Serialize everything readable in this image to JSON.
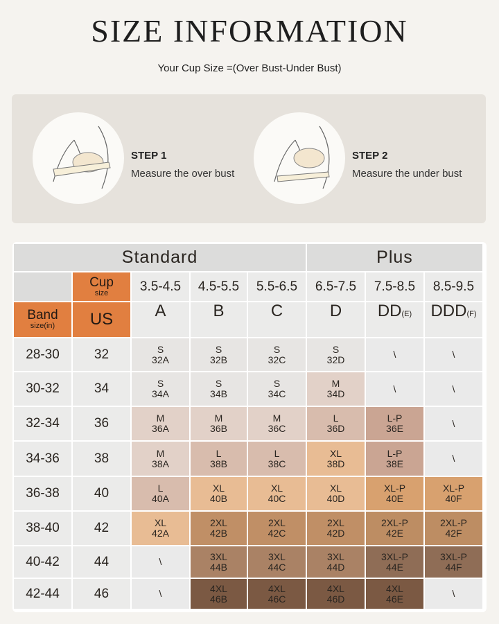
{
  "title": "SIZE INFORMATION",
  "subtitle": "Your Cup Size =(Over Bust-Under Bust)",
  "steps": [
    {
      "label": "STEP 1",
      "desc": "Measure the over bust",
      "icon": "measure-over-bust-illustration"
    },
    {
      "label": "STEP 2",
      "desc": "Measure the under bust",
      "icon": "measure-under-bust-illustration"
    }
  ],
  "table": {
    "group_headers": [
      "Standard",
      "Plus"
    ],
    "cup_label": "Cup",
    "cup_sub": "size",
    "band_label": "Band",
    "band_sub": "size(in)",
    "us_label": "US",
    "cup_ranges": [
      "3.5-4.5",
      "4.5-5.5",
      "5.5-6.5",
      "6.5-7.5",
      "7.5-8.5",
      "8.5-9.5"
    ],
    "cup_letters": [
      {
        "l": "A",
        "s": ""
      },
      {
        "l": "B",
        "s": ""
      },
      {
        "l": "C",
        "s": ""
      },
      {
        "l": "D",
        "s": ""
      },
      {
        "l": "DD",
        "s": "(E)"
      },
      {
        "l": "DDD",
        "s": "(F)"
      }
    ],
    "rows": [
      {
        "band": "28-30",
        "us": "32",
        "cells": [
          [
            "S",
            "32A"
          ],
          [
            "S",
            "32B"
          ],
          [
            "S",
            "32C"
          ],
          [
            "S",
            "32D"
          ],
          [
            "\\",
            ""
          ],
          [
            "\\",
            ""
          ]
        ]
      },
      {
        "band": "30-32",
        "us": "34",
        "cells": [
          [
            "S",
            "34A"
          ],
          [
            "S",
            "34B"
          ],
          [
            "S",
            "34C"
          ],
          [
            "M",
            "34D"
          ],
          [
            "\\",
            ""
          ],
          [
            "\\",
            ""
          ]
        ]
      },
      {
        "band": "32-34",
        "us": "36",
        "cells": [
          [
            "M",
            "36A"
          ],
          [
            "M",
            "36B"
          ],
          [
            "M",
            "36C"
          ],
          [
            "L",
            "36D"
          ],
          [
            "L-P",
            "36E"
          ],
          [
            "\\",
            ""
          ]
        ]
      },
      {
        "band": "34-36",
        "us": "38",
        "cells": [
          [
            "M",
            "38A"
          ],
          [
            "L",
            "38B"
          ],
          [
            "L",
            "38C"
          ],
          [
            "XL",
            "38D"
          ],
          [
            "L-P",
            "38E"
          ],
          [
            "\\",
            ""
          ]
        ]
      },
      {
        "band": "36-38",
        "us": "40",
        "cells": [
          [
            "L",
            "40A"
          ],
          [
            "XL",
            "40B"
          ],
          [
            "XL",
            "40C"
          ],
          [
            "XL",
            "40D"
          ],
          [
            "XL-P",
            "40E"
          ],
          [
            "XL-P",
            "40F"
          ]
        ]
      },
      {
        "band": "38-40",
        "us": "42",
        "cells": [
          [
            "XL",
            "42A"
          ],
          [
            "2XL",
            "42B"
          ],
          [
            "2XL",
            "42C"
          ],
          [
            "2XL",
            "42D"
          ],
          [
            "2XL-P",
            "42E"
          ],
          [
            "2XL-P",
            "42F"
          ]
        ]
      },
      {
        "band": "40-42",
        "us": "44",
        "cells": [
          [
            "\\",
            ""
          ],
          [
            "3XL",
            "44B"
          ],
          [
            "3XL",
            "44C"
          ],
          [
            "3XL",
            "44D"
          ],
          [
            "3XL-P",
            "44E"
          ],
          [
            "3XL-P",
            "44F"
          ]
        ]
      },
      {
        "band": "42-44",
        "us": "46",
        "cells": [
          [
            "\\",
            ""
          ],
          [
            "4XL",
            "46B"
          ],
          [
            "4XL",
            "46C"
          ],
          [
            "4XL",
            "46D"
          ],
          [
            "4XL",
            "46E"
          ],
          [
            "\\",
            ""
          ]
        ]
      }
    ],
    "size_colors": {
      "S": "#e7e5e3",
      "M": "#e2d1c8",
      "L": "#d8bcad",
      "XL": "#e8bc94",
      "L-P": "#caa593",
      "XL-P": "#d8a16f",
      "2XL": "#c08f66",
      "2XL-P": "#bd8d63",
      "3XL": "#aa8265",
      "3XL-P": "#8f6d56",
      "4XL": "#7b5943",
      "\\": "#eaeaea"
    },
    "accent": "#e17f40"
  }
}
